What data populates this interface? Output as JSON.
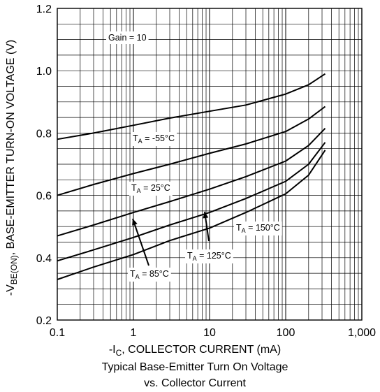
{
  "chart_data": {
    "type": "line",
    "title": "Typical Base-Emitter Turn On Voltage",
    "subtitle": "vs. Collector Current",
    "xscale": "log",
    "xlim": [
      0.1,
      1000
    ],
    "ylim": [
      0.2,
      1.2
    ],
    "grid": true,
    "x_ticks": [
      "0.1",
      "1",
      "10",
      "100",
      "1,000"
    ],
    "y_ticks": [
      "0.2",
      "0.4",
      "0.6",
      "0.8",
      "1.0",
      "1.2"
    ],
    "xlabel": {
      "pre": "-I",
      "sub": "C",
      "post": ", COLLECTOR CURRENT (mA)"
    },
    "ylabel": {
      "pre": "-V",
      "sub": "BE(ON)",
      "post": ", BASE-EMITTER TURN-ON VOLTAGE (V)"
    },
    "note": "Gain = 10",
    "series": [
      {
        "label_pre": "T",
        "label_sub": "A",
        "label_post": " = -55°C",
        "x": [
          0.1,
          0.3,
          1,
          3,
          10,
          30,
          100,
          200,
          330
        ],
        "y": [
          0.78,
          0.8,
          0.825,
          0.848,
          0.87,
          0.89,
          0.925,
          0.955,
          0.99
        ]
      },
      {
        "label_pre": "T",
        "label_sub": "A",
        "label_post": " = 25°C",
        "x": [
          0.1,
          0.3,
          1,
          3,
          10,
          30,
          100,
          200,
          330
        ],
        "y": [
          0.6,
          0.635,
          0.67,
          0.7,
          0.735,
          0.765,
          0.805,
          0.845,
          0.885
        ]
      },
      {
        "label_pre": "T",
        "label_sub": "A",
        "label_post": " = 85°C",
        "x": [
          0.1,
          0.3,
          1,
          3,
          10,
          30,
          100,
          200,
          330
        ],
        "y": [
          0.47,
          0.505,
          0.545,
          0.58,
          0.62,
          0.66,
          0.71,
          0.76,
          0.815
        ]
      },
      {
        "label_pre": "T",
        "label_sub": "A",
        "label_post": " = 125°C",
        "x": [
          0.1,
          0.3,
          1,
          3,
          10,
          30,
          100,
          200,
          330
        ],
        "y": [
          0.39,
          0.425,
          0.465,
          0.505,
          0.545,
          0.59,
          0.645,
          0.7,
          0.77
        ]
      },
      {
        "label_pre": "T",
        "label_sub": "A",
        "label_post": " = 150°C",
        "x": [
          0.1,
          0.3,
          1,
          3,
          10,
          30,
          100,
          200,
          330
        ],
        "y": [
          0.33,
          0.37,
          0.41,
          0.455,
          0.495,
          0.545,
          0.605,
          0.665,
          0.745
        ]
      }
    ]
  }
}
